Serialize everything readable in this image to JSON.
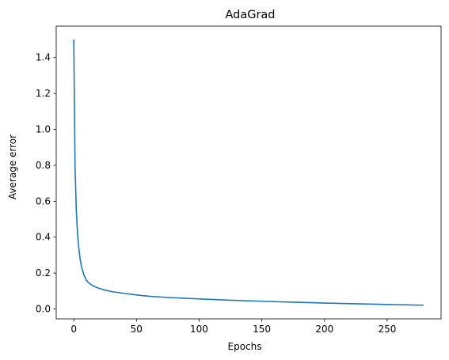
{
  "chart_data": {
    "type": "line",
    "title": "AdaGrad",
    "xlabel": "Epochs",
    "ylabel": "Average error",
    "xlim": [
      -14,
      293
    ],
    "ylim": [
      -0.055,
      1.575
    ],
    "x_ticks": [
      0,
      50,
      100,
      150,
      200,
      250
    ],
    "y_ticks": [
      0.0,
      0.2,
      0.4,
      0.6,
      0.8,
      1.0,
      1.2,
      1.4
    ],
    "y_tick_labels": [
      "0.0",
      "0.2",
      "0.4",
      "0.6",
      "0.8",
      "1.0",
      "1.2",
      "1.4"
    ],
    "grid": false,
    "series": [
      {
        "color": "#1f77b4",
        "x": [
          0,
          1,
          2,
          3,
          4,
          5,
          6,
          8,
          10,
          12,
          15,
          20,
          25,
          30,
          40,
          50,
          60,
          75,
          100,
          125,
          150,
          175,
          200,
          225,
          250,
          279
        ],
        "y": [
          1.5,
          0.8,
          0.55,
          0.42,
          0.34,
          0.28,
          0.24,
          0.19,
          0.16,
          0.145,
          0.13,
          0.115,
          0.105,
          0.097,
          0.087,
          0.078,
          0.071,
          0.064,
          0.056,
          0.049,
          0.043,
          0.038,
          0.033,
          0.029,
          0.025,
          0.021
        ]
      }
    ]
  }
}
